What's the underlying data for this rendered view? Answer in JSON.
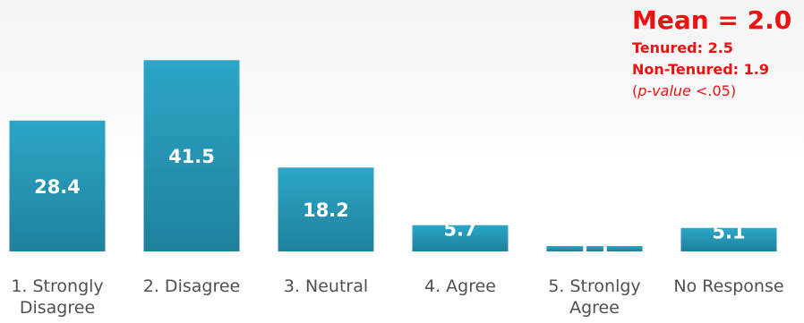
{
  "chart_data": {
    "type": "bar",
    "categories": [
      "1. Strongly\nDisagree",
      "2. Disagree",
      "3. Neutral",
      "4. Agree",
      "5.  Stronlgy\nAgree",
      "No Response"
    ],
    "values": [
      28.4,
      41.5,
      18.2,
      5.7,
      1.1,
      5.1
    ],
    "data_labels": [
      "28.4",
      "41.5",
      "18.2",
      "5.7",
      "1.1",
      "5.1"
    ],
    "bar_color": "#2aa0c1",
    "title": "",
    "xlabel": "",
    "ylabel": "",
    "ylim": [
      0,
      45
    ],
    "grid": false
  },
  "stats": {
    "mean": "Mean = 2.0",
    "tenured": "Tenured: 2.5",
    "non_tenured": "Non-Tenured: 1.9",
    "pvalue_open": "(",
    "pvalue_italic": "p-value",
    "pvalue_rest": " <.05)"
  },
  "colors": {
    "stats_text": "#ee1111",
    "bar_top": "#2aa0c1",
    "bar_bottom": "#1e7d97"
  }
}
